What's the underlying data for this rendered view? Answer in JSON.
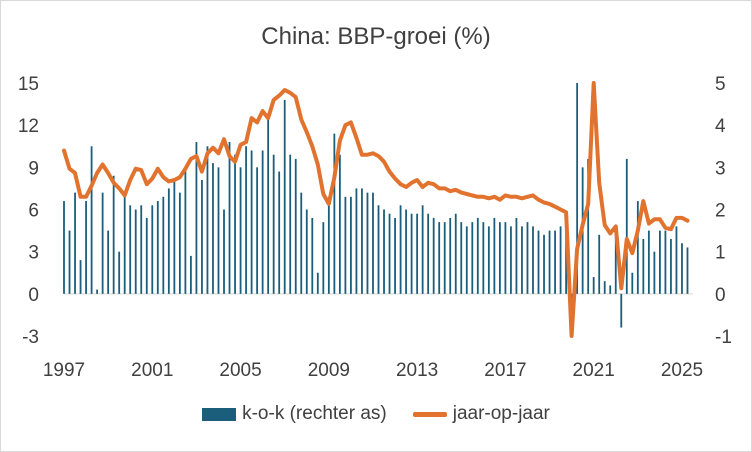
{
  "chart_data": {
    "type": "bar+line",
    "title": "China: BBP-groei (%)",
    "x_tick_labels": [
      "1997",
      "2001",
      "2005",
      "2009",
      "2013",
      "2017",
      "2021",
      "2025"
    ],
    "left_axis": {
      "range": [
        -3,
        15
      ],
      "ticks": [
        15,
        12,
        9,
        6,
        3,
        0,
        -3
      ]
    },
    "right_axis": {
      "range": [
        -1,
        5
      ],
      "ticks": [
        5,
        4,
        3,
        2,
        1,
        0,
        -1
      ]
    },
    "legend_position": "bottom",
    "series": [
      {
        "name": "k-o-k (rechter as)",
        "type": "bar",
        "axis": "right",
        "color": "#1b5e7b",
        "x": [
          1997.0,
          1997.25,
          1997.5,
          1997.75,
          1998.0,
          1998.25,
          1998.5,
          1998.75,
          1999.0,
          1999.25,
          1999.5,
          1999.75,
          2000.0,
          2000.25,
          2000.5,
          2000.75,
          2001.0,
          2001.25,
          2001.5,
          2001.75,
          2002.0,
          2002.25,
          2002.5,
          2002.75,
          2003.0,
          2003.25,
          2003.5,
          2003.75,
          2004.0,
          2004.25,
          2004.5,
          2004.75,
          2005.0,
          2005.25,
          2005.5,
          2005.75,
          2006.0,
          2006.25,
          2006.5,
          2006.75,
          2007.0,
          2007.25,
          2007.5,
          2007.75,
          2008.0,
          2008.25,
          2008.5,
          2008.75,
          2009.0,
          2009.25,
          2009.5,
          2009.75,
          2010.0,
          2010.25,
          2010.5,
          2010.75,
          2011.0,
          2011.25,
          2011.5,
          2011.75,
          2012.0,
          2012.25,
          2012.5,
          2012.75,
          2013.0,
          2013.25,
          2013.5,
          2013.75,
          2014.0,
          2014.25,
          2014.5,
          2014.75,
          2015.0,
          2015.25,
          2015.5,
          2015.75,
          2016.0,
          2016.25,
          2016.5,
          2016.75,
          2017.0,
          2017.25,
          2017.5,
          2017.75,
          2018.0,
          2018.25,
          2018.5,
          2018.75,
          2019.0,
          2019.25,
          2019.5,
          2019.75,
          2020.0,
          2020.25,
          2020.5,
          2020.75,
          2021.0,
          2021.25,
          2021.5,
          2021.75,
          2022.0,
          2022.25,
          2022.5,
          2022.75,
          2023.0,
          2023.25,
          2023.5,
          2023.75,
          2024.0,
          2024.25,
          2024.5,
          2024.75,
          2025.0,
          2025.25
        ],
        "values": [
          2.2,
          1.5,
          2.4,
          0.8,
          2.2,
          3.5,
          0.1,
          2.4,
          1.5,
          2.8,
          1.0,
          2.3,
          2.1,
          2.0,
          2.1,
          1.8,
          2.1,
          2.2,
          2.3,
          2.5,
          2.7,
          2.4,
          3.0,
          0.9,
          3.6,
          2.7,
          3.5,
          3.1,
          3.0,
          2.0,
          3.6,
          3.3,
          3.0,
          3.5,
          3.4,
          3.0,
          3.4,
          4.2,
          3.3,
          2.9,
          4.6,
          3.3,
          3.2,
          2.4,
          2.0,
          1.8,
          0.5,
          1.7,
          2.3,
          3.8,
          3.3,
          2.3,
          2.3,
          2.5,
          2.5,
          2.4,
          2.4,
          2.1,
          2.0,
          1.9,
          1.8,
          2.1,
          2.0,
          1.9,
          1.9,
          2.1,
          1.9,
          1.8,
          1.7,
          1.7,
          1.8,
          1.9,
          1.7,
          1.6,
          1.7,
          1.8,
          1.7,
          1.6,
          1.8,
          1.7,
          1.7,
          1.6,
          1.8,
          1.6,
          1.7,
          1.6,
          1.5,
          1.4,
          1.5,
          1.5,
          1.6,
          1.4,
          -0.9,
          5.0,
          3.0,
          3.2,
          0.4,
          1.4,
          0.3,
          0.2,
          1.5,
          -0.8,
          3.2,
          0.5,
          2.2,
          1.3,
          1.5,
          1.0,
          1.5,
          1.5,
          1.3,
          1.6,
          1.2,
          1.1
        ]
      },
      {
        "name": "jaar-op-jaar",
        "type": "line",
        "axis": "left",
        "color": "#e2732e",
        "x": [
          1997.0,
          1997.25,
          1997.5,
          1997.75,
          1998.0,
          1998.25,
          1998.5,
          1998.75,
          1999.0,
          1999.25,
          1999.5,
          1999.75,
          2000.0,
          2000.25,
          2000.5,
          2000.75,
          2001.0,
          2001.25,
          2001.5,
          2001.75,
          2002.0,
          2002.25,
          2002.5,
          2002.75,
          2003.0,
          2003.25,
          2003.5,
          2003.75,
          2004.0,
          2004.25,
          2004.5,
          2004.75,
          2005.0,
          2005.25,
          2005.5,
          2005.75,
          2006.0,
          2006.25,
          2006.5,
          2006.75,
          2007.0,
          2007.25,
          2007.5,
          2007.75,
          2008.0,
          2008.25,
          2008.5,
          2008.75,
          2009.0,
          2009.25,
          2009.5,
          2009.75,
          2010.0,
          2010.25,
          2010.5,
          2010.75,
          2011.0,
          2011.25,
          2011.5,
          2011.75,
          2012.0,
          2012.25,
          2012.5,
          2012.75,
          2013.0,
          2013.25,
          2013.5,
          2013.75,
          2014.0,
          2014.25,
          2014.5,
          2014.75,
          2015.0,
          2015.25,
          2015.5,
          2015.75,
          2016.0,
          2016.25,
          2016.5,
          2016.75,
          2017.0,
          2017.25,
          2017.5,
          2017.75,
          2018.0,
          2018.25,
          2018.5,
          2018.75,
          2019.0,
          2019.25,
          2019.5,
          2019.75,
          2020.0,
          2020.25,
          2020.5,
          2020.75,
          2021.0,
          2021.25,
          2021.5,
          2021.75,
          2022.0,
          2022.25,
          2022.5,
          2022.75,
          2023.0,
          2023.25,
          2023.5,
          2023.75,
          2024.0,
          2024.25,
          2024.5,
          2024.75,
          2025.0,
          2025.25
        ],
        "values": [
          10.2,
          8.9,
          8.6,
          6.9,
          6.9,
          7.7,
          8.6,
          9.2,
          8.6,
          7.9,
          7.5,
          7.0,
          8.1,
          8.9,
          8.8,
          7.8,
          8.2,
          8.9,
          8.3,
          8.0,
          8.1,
          8.3,
          8.9,
          9.6,
          9.8,
          8.7,
          10.0,
          10.4,
          10.0,
          11.0,
          9.8,
          9.4,
          10.6,
          10.8,
          12.5,
          12.2,
          13.0,
          12.5,
          13.8,
          14.1,
          14.5,
          14.3,
          14.0,
          12.4,
          11.5,
          10.5,
          9.2,
          7.1,
          6.4,
          8.3,
          10.9,
          12.0,
          12.2,
          11.1,
          9.9,
          9.9,
          10.0,
          9.8,
          9.4,
          8.7,
          8.2,
          7.8,
          7.6,
          7.9,
          8.1,
          7.6,
          7.9,
          7.8,
          7.5,
          7.5,
          7.3,
          7.4,
          7.2,
          7.1,
          7.0,
          6.9,
          6.9,
          6.8,
          6.9,
          6.7,
          7.0,
          6.9,
          6.9,
          6.8,
          6.9,
          7.0,
          6.7,
          6.5,
          6.4,
          6.2,
          6.0,
          5.8,
          -6.8,
          3.2,
          4.9,
          6.4,
          18.3,
          7.9,
          4.9,
          4.3,
          4.8,
          0.4,
          3.9,
          2.9,
          4.5,
          6.6,
          5.0,
          5.3,
          5.3,
          4.7,
          4.6,
          5.4,
          5.4,
          5.2
        ]
      }
    ]
  },
  "legend": {
    "bar_label": "k-o-k (rechter as)",
    "line_label": "jaar-op-jaar"
  }
}
